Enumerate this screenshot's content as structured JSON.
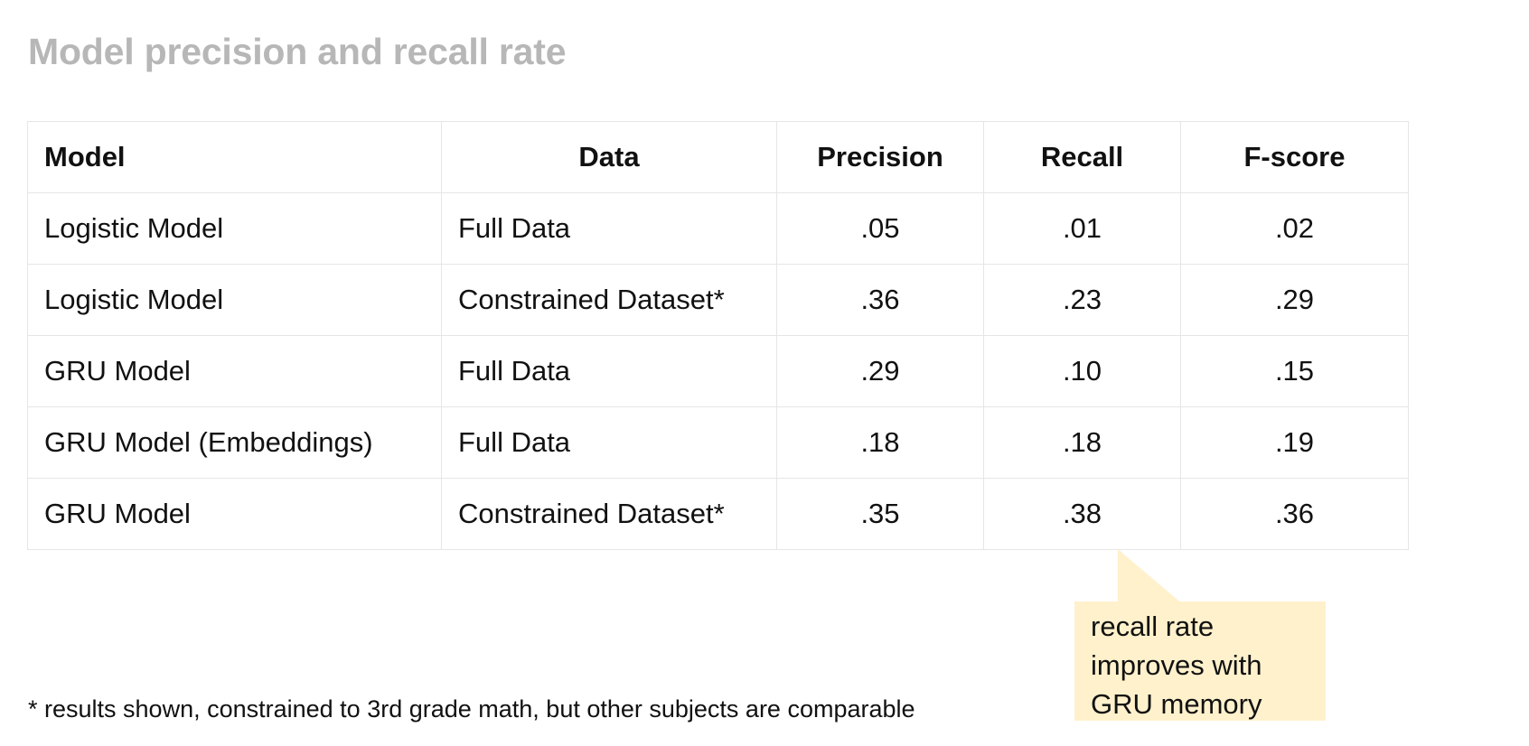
{
  "slide": {
    "title": "Model precision and recall rate",
    "footnote": "* results shown, constrained to 3rd grade math, but other subjects are comparable"
  },
  "table": {
    "headers": {
      "model": "Model",
      "data": "Data",
      "precision": "Precision",
      "recall": "Recall",
      "fscore": "F-score"
    },
    "rows": [
      {
        "model": "Logistic Model",
        "data": "Full Data",
        "precision": ".05",
        "recall": ".01",
        "fscore": ".02"
      },
      {
        "model": "Logistic Model",
        "data": "Constrained Dataset*",
        "precision": ".36",
        "recall": ".23",
        "fscore": ".29"
      },
      {
        "model": "GRU Model",
        "data": "Full Data",
        "precision": ".29",
        "recall": ".10",
        "fscore": ".15"
      },
      {
        "model": "GRU Model (Embeddings)",
        "data": "Full Data",
        "precision": ".18",
        "recall": ".18",
        "fscore": ".19"
      },
      {
        "model": "GRU Model",
        "data": "Constrained Dataset*",
        "precision": ".35",
        "recall": ".38",
        "fscore": ".36"
      }
    ]
  },
  "callout": {
    "lines": [
      "recall rate",
      "improves with",
      "GRU memory"
    ],
    "color": "#fff1cc"
  }
}
